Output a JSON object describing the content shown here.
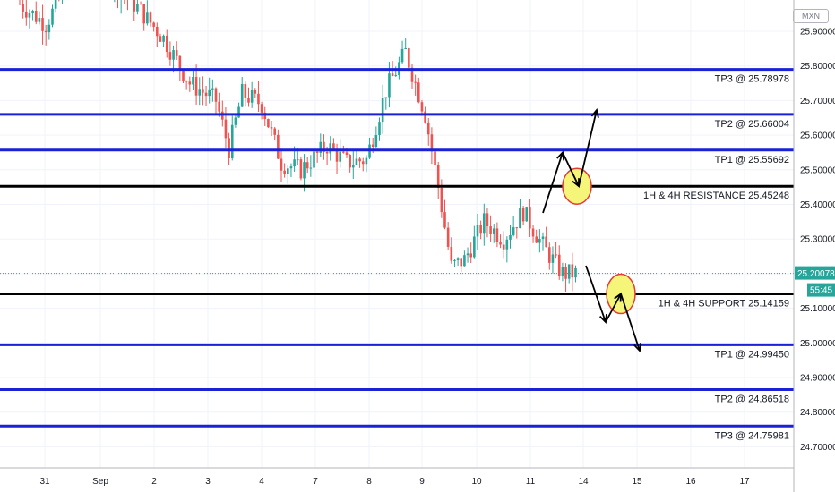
{
  "currency_badge": "MXN",
  "chart_data": {
    "type": "candlestick",
    "ylim": [
      24.65,
      26.0
    ],
    "yticks": [
      "25.90000",
      "25.80000",
      "25.70000",
      "25.60000",
      "25.50000",
      "25.40000",
      "25.30000",
      "25.20000",
      "25.10000",
      "25.00000",
      "24.90000",
      "24.80000",
      "24.70000"
    ],
    "ytick_values": [
      25.9,
      25.8,
      25.7,
      25.6,
      25.5,
      25.4,
      25.3,
      25.2,
      25.1,
      25.0,
      24.9,
      24.8,
      24.7
    ],
    "xticks": [
      "31",
      "Sep",
      "2",
      "3",
      "4",
      "7",
      "8",
      "9",
      "10",
      "11",
      "14",
      "15",
      "16",
      "17"
    ],
    "current_price": {
      "value": 25.20078,
      "label": "25.20078",
      "countdown": "55:45"
    },
    "levels": [
      {
        "price": 25.78978,
        "label": "TP3 @ 25.78978",
        "color": "#1a21d6",
        "kind": "target"
      },
      {
        "price": 25.66004,
        "label": "TP2 @ 25.66004",
        "color": "#1a21d6",
        "kind": "target"
      },
      {
        "price": 25.55692,
        "label": "TP1 @ 25.55692",
        "color": "#1a21d6",
        "kind": "target"
      },
      {
        "price": 25.45248,
        "label": "1H & 4H RESISTANCE 25.45248",
        "color": "#000000",
        "kind": "resistance"
      },
      {
        "price": 25.14159,
        "label": "1H & 4H SUPPORT 25.14159",
        "color": "#000000",
        "kind": "support"
      },
      {
        "price": 24.9945,
        "label": "TP1 @ 24.99450",
        "color": "#1a21d6",
        "kind": "target"
      },
      {
        "price": 24.86518,
        "label": "TP2 @ 24.86518",
        "color": "#1a21d6",
        "kind": "target"
      },
      {
        "price": 24.75981,
        "label": "TP3 @ 24.75981",
        "color": "#1a21d6",
        "kind": "target"
      }
    ],
    "path": [
      {
        "bar": 0,
        "price": 25.98
      },
      {
        "bar": 8,
        "price": 25.92
      },
      {
        "bar": 16,
        "price": 26.06
      },
      {
        "bar": 24,
        "price": 26.08
      },
      {
        "bar": 30,
        "price": 26.02
      },
      {
        "bar": 36,
        "price": 25.97
      },
      {
        "bar": 44,
        "price": 25.88
      },
      {
        "bar": 52,
        "price": 25.75
      },
      {
        "bar": 60,
        "price": 25.7
      },
      {
        "bar": 64,
        "price": 25.56
      },
      {
        "bar": 68,
        "price": 25.72
      },
      {
        "bar": 74,
        "price": 25.69
      },
      {
        "bar": 80,
        "price": 25.52
      },
      {
        "bar": 86,
        "price": 25.5
      },
      {
        "bar": 94,
        "price": 25.57
      },
      {
        "bar": 100,
        "price": 25.52
      },
      {
        "bar": 106,
        "price": 25.53
      },
      {
        "bar": 112,
        "price": 25.73
      },
      {
        "bar": 118,
        "price": 25.84
      },
      {
        "bar": 124,
        "price": 25.66
      },
      {
        "bar": 128,
        "price": 25.45
      },
      {
        "bar": 132,
        "price": 25.22
      },
      {
        "bar": 136,
        "price": 25.24
      },
      {
        "bar": 142,
        "price": 25.35
      },
      {
        "bar": 148,
        "price": 25.3
      },
      {
        "bar": 154,
        "price": 25.38
      },
      {
        "bar": 160,
        "price": 25.28
      },
      {
        "bar": 166,
        "price": 25.2
      },
      {
        "bar": 170,
        "price": 25.2
      }
    ],
    "candle_color_up": "#26a69a",
    "candle_color_down": "#ef5350",
    "projection_color": "#000000",
    "circle_fill": "#f5f57a",
    "circle_stroke": "#e53935",
    "grid": true
  }
}
